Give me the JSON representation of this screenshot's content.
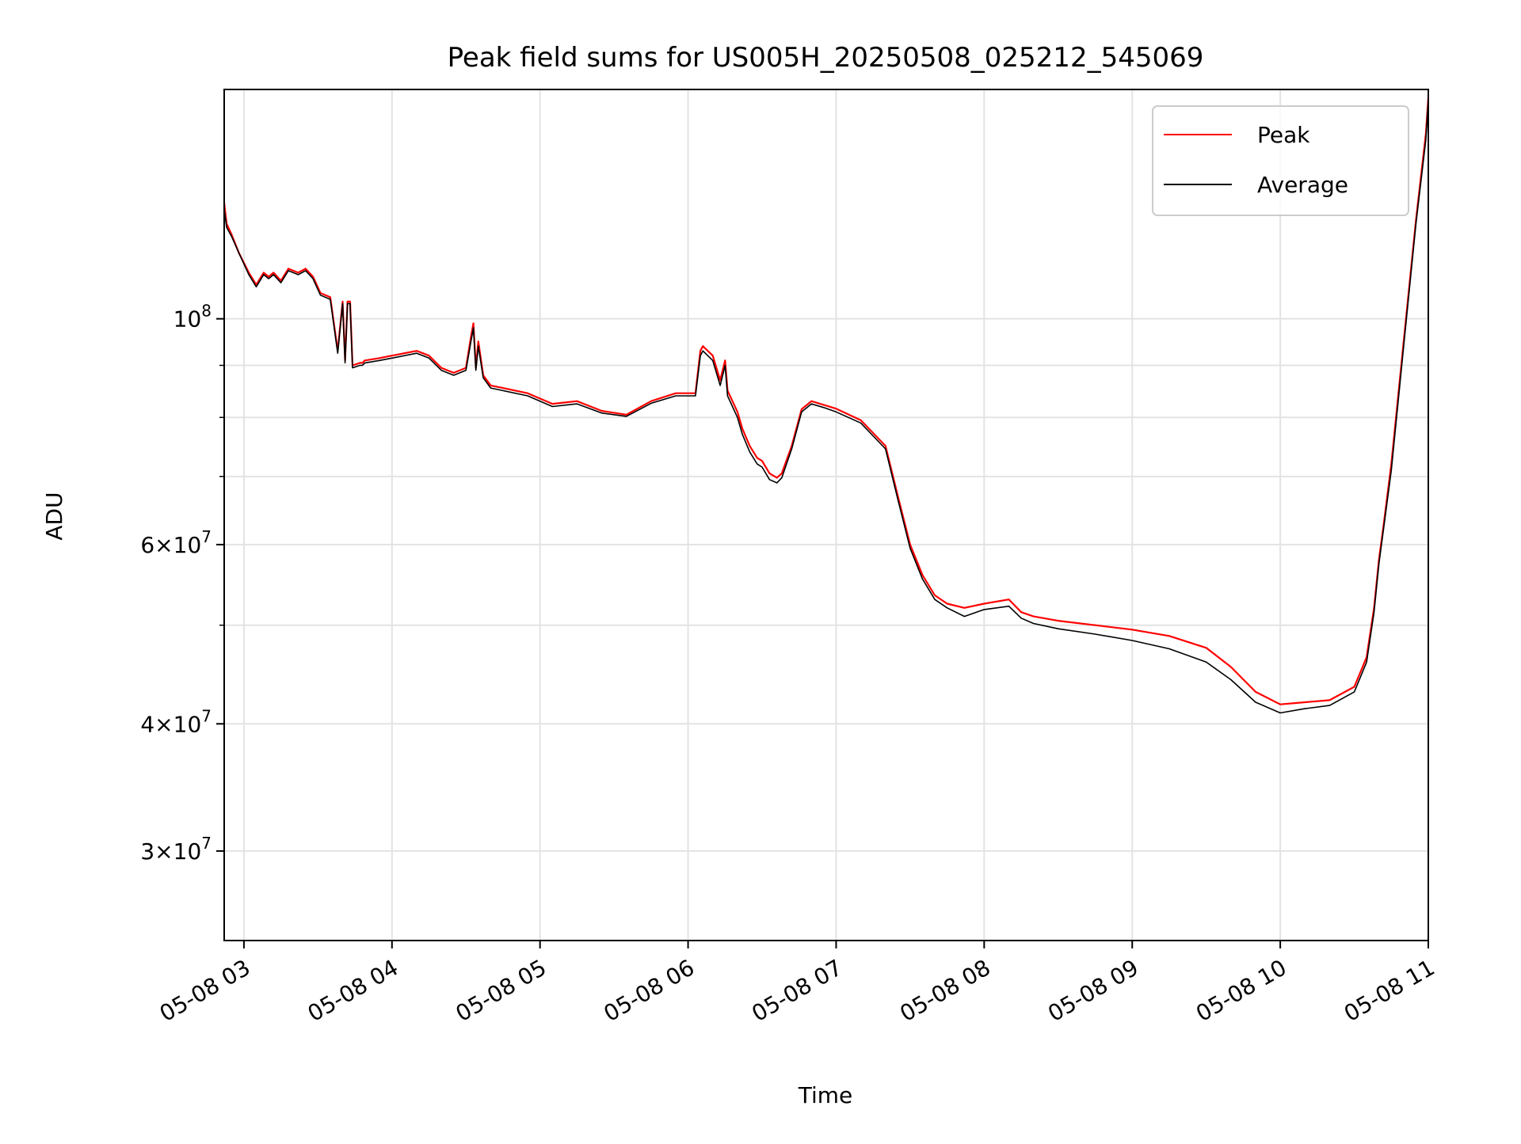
{
  "chart_data": {
    "type": "line",
    "title": "Peak field sums for US005H_20250508_025212_545069",
    "xlabel": "Time",
    "ylabel": "ADU",
    "yscale": "log",
    "grid": true,
    "legend_position": "top-right",
    "xlim": [
      "2025-05-08 02:52",
      "2025-05-08 11:00"
    ],
    "ylim": [
      24500000,
      168000000
    ],
    "x_ticks": [
      {
        "t": "2025-05-08 03:00",
        "label": "05-08 03"
      },
      {
        "t": "2025-05-08 04:00",
        "label": "05-08 04"
      },
      {
        "t": "2025-05-08 05:00",
        "label": "05-08 05"
      },
      {
        "t": "2025-05-08 06:00",
        "label": "05-08 06"
      },
      {
        "t": "2025-05-08 07:00",
        "label": "05-08 07"
      },
      {
        "t": "2025-05-08 08:00",
        "label": "05-08 08"
      },
      {
        "t": "2025-05-08 09:00",
        "label": "05-08 09"
      },
      {
        "t": "2025-05-08 10:00",
        "label": "05-08 10"
      },
      {
        "t": "2025-05-08 11:00",
        "label": "05-08 11"
      }
    ],
    "y_ticks": [
      {
        "value": 100000000,
        "base": "10",
        "exp": "8"
      },
      {
        "value": 60000000,
        "base": "6×10",
        "exp": "7"
      },
      {
        "value": 40000000,
        "base": "4×10",
        "exp": "7"
      },
      {
        "value": 30000000,
        "base": "3×10",
        "exp": "7"
      }
    ],
    "y_minor_ticks": [
      90000000,
      80000000,
      70000000,
      50000000
    ],
    "series": [
      {
        "name": "Peak",
        "color": "#ff0000",
        "x": [
          "2025-05-08 02:52",
          "2025-05-08 02:53",
          "2025-05-08 02:55",
          "2025-05-08 02:58",
          "2025-05-08 03:02",
          "2025-05-08 03:05",
          "2025-05-08 03:08",
          "2025-05-08 03:10",
          "2025-05-08 03:12",
          "2025-05-08 03:15",
          "2025-05-08 03:18",
          "2025-05-08 03:22",
          "2025-05-08 03:25",
          "2025-05-08 03:28",
          "2025-05-08 03:31",
          "2025-05-08 03:35",
          "2025-05-08 03:38",
          "2025-05-08 03:40",
          "2025-05-08 03:41",
          "2025-05-08 03:42",
          "2025-05-08 03:43",
          "2025-05-08 03:44",
          "2025-05-08 03:47",
          "2025-05-08 03:48",
          "2025-05-08 03:49",
          "2025-05-08 03:55",
          "2025-05-08 04:00",
          "2025-05-08 04:10",
          "2025-05-08 04:15",
          "2025-05-08 04:20",
          "2025-05-08 04:25",
          "2025-05-08 04:30",
          "2025-05-08 04:32",
          "2025-05-08 04:33",
          "2025-05-08 04:34",
          "2025-05-08 04:35",
          "2025-05-08 04:37",
          "2025-05-08 04:40",
          "2025-05-08 04:45",
          "2025-05-08 04:55",
          "2025-05-08 05:05",
          "2025-05-08 05:15",
          "2025-05-08 05:25",
          "2025-05-08 05:35",
          "2025-05-08 05:45",
          "2025-05-08 05:55",
          "2025-05-08 06:03",
          "2025-05-08 06:05",
          "2025-05-08 06:06",
          "2025-05-08 06:10",
          "2025-05-08 06:13",
          "2025-05-08 06:15",
          "2025-05-08 06:16",
          "2025-05-08 06:18",
          "2025-05-08 06:20",
          "2025-05-08 06:22",
          "2025-05-08 06:25",
          "2025-05-08 06:28",
          "2025-05-08 06:30",
          "2025-05-08 06:33",
          "2025-05-08 06:36",
          "2025-05-08 06:38",
          "2025-05-08 06:42",
          "2025-05-08 06:46",
          "2025-05-08 06:50",
          "2025-05-08 06:55",
          "2025-05-08 07:00",
          "2025-05-08 07:10",
          "2025-05-08 07:20",
          "2025-05-08 07:25",
          "2025-05-08 07:30",
          "2025-05-08 07:35",
          "2025-05-08 07:40",
          "2025-05-08 07:45",
          "2025-05-08 07:52",
          "2025-05-08 08:00",
          "2025-05-08 08:10",
          "2025-05-08 08:15",
          "2025-05-08 08:20",
          "2025-05-08 08:30",
          "2025-05-08 08:45",
          "2025-05-08 09:00",
          "2025-05-08 09:15",
          "2025-05-08 09:30",
          "2025-05-08 09:40",
          "2025-05-08 09:50",
          "2025-05-08 10:00",
          "2025-05-08 10:10",
          "2025-05-08 10:20",
          "2025-05-08 10:30",
          "2025-05-08 10:35",
          "2025-05-08 10:38",
          "2025-05-08 10:40",
          "2025-05-08 10:42",
          "2025-05-08 10:45",
          "2025-05-08 10:50",
          "2025-05-08 10:55",
          "2025-05-08 10:59",
          "2025-05-08 11:00"
        ],
        "y": [
          130000000,
          124000000,
          121000000,
          116000000,
          111000000,
          108000000,
          111000000,
          110000000,
          111000000,
          109000000,
          112000000,
          111000000,
          112000000,
          110000000,
          106000000,
          105000000,
          93000000,
          104000000,
          91000000,
          104000000,
          104000000,
          90000000,
          90500000,
          90500000,
          91000000,
          91500000,
          92000000,
          93000000,
          92000000,
          89500000,
          88500000,
          89500000,
          96000000,
          99000000,
          89500000,
          95000000,
          88000000,
          86000000,
          85500000,
          84500000,
          82500000,
          83000000,
          81200000,
          80500000,
          83000000,
          84500000,
          84500000,
          93000000,
          94000000,
          92000000,
          87000000,
          91000000,
          85000000,
          83000000,
          81000000,
          78000000,
          75000000,
          73000000,
          72500000,
          70500000,
          69800000,
          70500000,
          75000000,
          81500000,
          83000000,
          82300000,
          81600000,
          79500000,
          75000000,
          67000000,
          60000000,
          56000000,
          53500000,
          52500000,
          52000000,
          52500000,
          53000000,
          51500000,
          51000000,
          50500000,
          50000000,
          49500000,
          48800000,
          47500000,
          45500000,
          43000000,
          41800000,
          42000000,
          42200000,
          43500000,
          46500000,
          52000000,
          58000000,
          63000000,
          72000000,
          95000000,
          125000000,
          152000000,
          165000000
        ]
      },
      {
        "name": "Average",
        "color": "#000000",
        "x": [
          "2025-05-08 02:52",
          "2025-05-08 02:53",
          "2025-05-08 02:55",
          "2025-05-08 02:58",
          "2025-05-08 03:02",
          "2025-05-08 03:05",
          "2025-05-08 03:08",
          "2025-05-08 03:10",
          "2025-05-08 03:12",
          "2025-05-08 03:15",
          "2025-05-08 03:18",
          "2025-05-08 03:22",
          "2025-05-08 03:25",
          "2025-05-08 03:28",
          "2025-05-08 03:31",
          "2025-05-08 03:35",
          "2025-05-08 03:38",
          "2025-05-08 03:40",
          "2025-05-08 03:41",
          "2025-05-08 03:42",
          "2025-05-08 03:43",
          "2025-05-08 03:44",
          "2025-05-08 03:47",
          "2025-05-08 03:48",
          "2025-05-08 03:49",
          "2025-05-08 03:55",
          "2025-05-08 04:00",
          "2025-05-08 04:10",
          "2025-05-08 04:15",
          "2025-05-08 04:20",
          "2025-05-08 04:25",
          "2025-05-08 04:30",
          "2025-05-08 04:32",
          "2025-05-08 04:33",
          "2025-05-08 04:34",
          "2025-05-08 04:35",
          "2025-05-08 04:37",
          "2025-05-08 04:40",
          "2025-05-08 04:45",
          "2025-05-08 04:55",
          "2025-05-08 05:05",
          "2025-05-08 05:15",
          "2025-05-08 05:25",
          "2025-05-08 05:35",
          "2025-05-08 05:45",
          "2025-05-08 05:55",
          "2025-05-08 06:03",
          "2025-05-08 06:05",
          "2025-05-08 06:06",
          "2025-05-08 06:10",
          "2025-05-08 06:13",
          "2025-05-08 06:15",
          "2025-05-08 06:16",
          "2025-05-08 06:18",
          "2025-05-08 06:20",
          "2025-05-08 06:22",
          "2025-05-08 06:25",
          "2025-05-08 06:28",
          "2025-05-08 06:30",
          "2025-05-08 06:33",
          "2025-05-08 06:36",
          "2025-05-08 06:38",
          "2025-05-08 06:42",
          "2025-05-08 06:46",
          "2025-05-08 06:50",
          "2025-05-08 06:55",
          "2025-05-08 07:00",
          "2025-05-08 07:10",
          "2025-05-08 07:20",
          "2025-05-08 07:25",
          "2025-05-08 07:30",
          "2025-05-08 07:35",
          "2025-05-08 07:40",
          "2025-05-08 07:45",
          "2025-05-08 07:52",
          "2025-05-08 08:00",
          "2025-05-08 08:10",
          "2025-05-08 08:15",
          "2025-05-08 08:20",
          "2025-05-08 08:30",
          "2025-05-08 08:45",
          "2025-05-08 09:00",
          "2025-05-08 09:15",
          "2025-05-08 09:30",
          "2025-05-08 09:40",
          "2025-05-08 09:50",
          "2025-05-08 10:00",
          "2025-05-08 10:10",
          "2025-05-08 10:20",
          "2025-05-08 10:30",
          "2025-05-08 10:35",
          "2025-05-08 10:38",
          "2025-05-08 10:40",
          "2025-05-08 10:42",
          "2025-05-08 10:45",
          "2025-05-08 10:50",
          "2025-05-08 10:55",
          "2025-05-08 10:59",
          "2025-05-08 11:00"
        ],
        "y": [
          128000000,
          123000000,
          120500000,
          116000000,
          110500000,
          107500000,
          110500000,
          109500000,
          110500000,
          108500000,
          111500000,
          110500000,
          111500000,
          109500000,
          105500000,
          104500000,
          92500000,
          103500000,
          90500000,
          103500000,
          103500000,
          89500000,
          90000000,
          90000000,
          90500000,
          91000000,
          91500000,
          92500000,
          91500000,
          89000000,
          88000000,
          89000000,
          95000000,
          98000000,
          89000000,
          94000000,
          87500000,
          85500000,
          85000000,
          84000000,
          82000000,
          82500000,
          80800000,
          80200000,
          82600000,
          84000000,
          84000000,
          92000000,
          93000000,
          91000000,
          86000000,
          90000000,
          84000000,
          82000000,
          80000000,
          77000000,
          74000000,
          72000000,
          71500000,
          69500000,
          69000000,
          69800000,
          74500000,
          81000000,
          82500000,
          81800000,
          81000000,
          79000000,
          74500000,
          66500000,
          59500000,
          55500000,
          53000000,
          52000000,
          51000000,
          51800000,
          52200000,
          50800000,
          50200000,
          49600000,
          49000000,
          48300000,
          47400000,
          46000000,
          44200000,
          42000000,
          41000000,
          41400000,
          41700000,
          43000000,
          46000000,
          51500000,
          57500000,
          62500000,
          71000000,
          94000000,
          124000000,
          150000000,
          164000000
        ]
      }
    ]
  }
}
